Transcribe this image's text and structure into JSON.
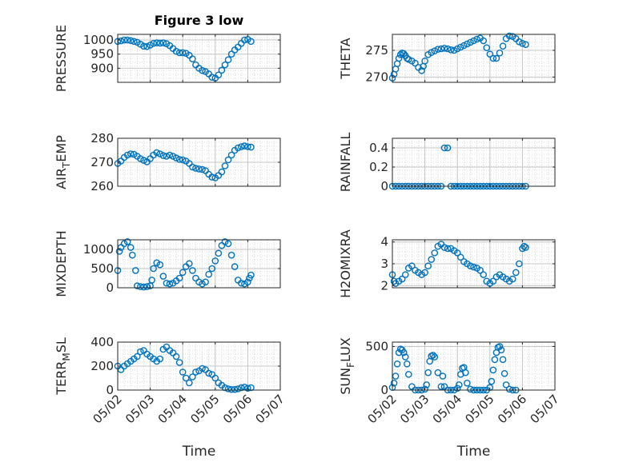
{
  "figure": {
    "title": "Figure 3 low",
    "xlabel": "Time",
    "xticks": [
      "05/02",
      "05/03",
      "05/04",
      "05/05",
      "05/06",
      "05/07"
    ],
    "marker_color": "#0072BD"
  },
  "chart_data": [
    {
      "type": "scatter",
      "id": "pressure",
      "title": "Figure 3 low",
      "ylabel": "PRESSURE",
      "ylim": [
        850,
        1020
      ],
      "yticks": [
        900,
        950,
        1000
      ],
      "grid": true,
      "x": [
        0.0,
        0.1,
        0.2,
        0.3,
        0.4,
        0.5,
        0.6,
        0.7,
        0.8,
        0.9,
        1.0,
        1.1,
        1.2,
        1.3,
        1.4,
        1.5,
        1.6,
        1.7,
        1.8,
        1.9,
        2.0,
        2.1,
        2.2,
        2.3,
        2.4,
        2.5,
        2.6,
        2.7,
        2.8,
        2.9,
        3.0,
        3.1,
        3.2,
        3.3,
        3.4,
        3.5,
        3.6,
        3.7,
        3.8,
        3.9,
        4.0,
        4.1
      ],
      "y": [
        995,
        997,
        1000,
        1000,
        998,
        995,
        992,
        985,
        978,
        977,
        982,
        988,
        990,
        989,
        990,
        987,
        980,
        970,
        960,
        955,
        955,
        953,
        946,
        933,
        912,
        900,
        892,
        888,
        880,
        868,
        865,
        876,
        893,
        912,
        930,
        950,
        965,
        975,
        988,
        1000,
        1002,
        995
      ]
    },
    {
      "type": "scatter",
      "id": "theta",
      "ylabel": "THETA",
      "ylim": [
        269,
        278
      ],
      "yticks": [
        270,
        275
      ],
      "grid": true,
      "x": [
        0.0,
        0.05,
        0.1,
        0.15,
        0.2,
        0.25,
        0.3,
        0.35,
        0.4,
        0.45,
        0.5,
        0.6,
        0.7,
        0.8,
        0.9,
        0.95,
        1.0,
        1.1,
        1.2,
        1.3,
        1.4,
        1.5,
        1.6,
        1.7,
        1.8,
        1.9,
        2.0,
        2.1,
        2.2,
        2.3,
        2.4,
        2.5,
        2.6,
        2.7,
        2.8,
        2.9,
        3.0,
        3.1,
        3.2,
        3.3,
        3.4,
        3.5,
        3.6,
        3.7,
        3.8,
        3.9,
        4.0,
        4.1
      ],
      "y": [
        269.8,
        270.5,
        271.5,
        272.5,
        273.5,
        274.2,
        274.5,
        274.4,
        274.0,
        273.5,
        273.3,
        273.0,
        272.6,
        271.8,
        271.2,
        272.0,
        273.0,
        274.2,
        274.6,
        274.9,
        275.2,
        275.3,
        275.4,
        275.3,
        275.1,
        275.0,
        275.3,
        275.6,
        275.9,
        276.2,
        276.5,
        276.8,
        277.1,
        277.3,
        276.8,
        275.5,
        274.3,
        273.5,
        273.5,
        274.5,
        275.8,
        277.2,
        277.7,
        277.6,
        277.2,
        276.6,
        276.3,
        276.1
      ]
    },
    {
      "type": "scatter",
      "id": "air_temp",
      "ylabel": "AIR_TEMP",
      "ylim": [
        260,
        280
      ],
      "yticks": [
        260,
        270,
        280
      ],
      "grid": true,
      "x": [
        0.0,
        0.1,
        0.2,
        0.3,
        0.4,
        0.5,
        0.6,
        0.7,
        0.8,
        0.9,
        1.0,
        1.1,
        1.2,
        1.3,
        1.4,
        1.5,
        1.6,
        1.7,
        1.8,
        1.9,
        2.0,
        2.1,
        2.2,
        2.3,
        2.4,
        2.5,
        2.6,
        2.7,
        2.8,
        2.9,
        3.0,
        3.1,
        3.2,
        3.3,
        3.4,
        3.5,
        3.6,
        3.7,
        3.8,
        3.9,
        4.0,
        4.1
      ],
      "y": [
        269.5,
        270.5,
        272.0,
        273.0,
        273.5,
        273.3,
        272.5,
        271.5,
        270.8,
        270.2,
        271.5,
        273.0,
        274.0,
        273.5,
        272.8,
        272.5,
        273.0,
        272.5,
        271.8,
        271.2,
        271.0,
        270.5,
        269.5,
        268.0,
        267.5,
        267.2,
        267.0,
        266.5,
        265.0,
        263.8,
        263.5,
        264.5,
        266.0,
        268.5,
        271.0,
        273.0,
        275.0,
        276.0,
        276.5,
        276.8,
        276.5,
        276.3
      ]
    },
    {
      "type": "scatter",
      "id": "rainfall",
      "ylabel": "RAINFALL",
      "ylim": [
        0,
        0.5
      ],
      "yticks": [
        0,
        0.2,
        0.4
      ],
      "grid": true,
      "x": [
        0.0,
        0.1,
        0.2,
        0.3,
        0.4,
        0.5,
        0.6,
        0.7,
        0.8,
        0.9,
        1.0,
        1.1,
        1.2,
        1.3,
        1.4,
        1.5,
        1.6,
        1.7,
        1.8,
        1.9,
        2.0,
        2.1,
        2.2,
        2.3,
        2.4,
        2.5,
        2.6,
        2.7,
        2.8,
        2.9,
        3.0,
        3.1,
        3.2,
        3.3,
        3.4,
        3.5,
        3.6,
        3.7,
        3.8,
        3.9,
        4.0,
        4.1
      ],
      "y": [
        0,
        0,
        0,
        0,
        0,
        0,
        0,
        0,
        0,
        0,
        0,
        0,
        0,
        0,
        0,
        0,
        0.4,
        0.4,
        0,
        0,
        0,
        0,
        0,
        0,
        0,
        0,
        0,
        0,
        0,
        0,
        0,
        0,
        0,
        0,
        0,
        0,
        0,
        0,
        0,
        0,
        0,
        0
      ]
    },
    {
      "type": "scatter",
      "id": "mixdepth",
      "ylabel": "MIXDEPTH",
      "ylim": [
        0,
        1250
      ],
      "yticks": [
        0,
        500,
        1000
      ],
      "grid": true,
      "x": [
        0.0,
        0.05,
        0.1,
        0.2,
        0.3,
        0.4,
        0.45,
        0.55,
        0.6,
        0.7,
        0.8,
        0.9,
        1.0,
        1.05,
        1.1,
        1.2,
        1.3,
        1.4,
        1.5,
        1.6,
        1.7,
        1.8,
        1.9,
        2.0,
        2.1,
        2.2,
        2.3,
        2.4,
        2.5,
        2.6,
        2.7,
        2.8,
        2.9,
        3.0,
        3.1,
        3.2,
        3.3,
        3.4,
        3.5,
        3.6,
        3.7,
        3.8,
        3.9,
        4.0,
        4.05,
        4.1
      ],
      "y": [
        450,
        950,
        1050,
        1150,
        1200,
        1050,
        850,
        450,
        50,
        30,
        20,
        30,
        50,
        200,
        500,
        650,
        600,
        300,
        120,
        100,
        120,
        180,
        250,
        400,
        550,
        630,
        450,
        250,
        150,
        100,
        150,
        350,
        500,
        700,
        900,
        1100,
        1200,
        1150,
        850,
        550,
        200,
        120,
        100,
        150,
        250,
        330
      ]
    },
    {
      "type": "scatter",
      "id": "h2omixra",
      "ylabel": "H2OMIXRA",
      "ylim": [
        1.9,
        4.1
      ],
      "yticks": [
        2,
        3,
        4
      ],
      "grid": true,
      "x": [
        0.0,
        0.05,
        0.1,
        0.2,
        0.3,
        0.4,
        0.5,
        0.6,
        0.7,
        0.8,
        0.9,
        1.0,
        1.1,
        1.2,
        1.3,
        1.4,
        1.5,
        1.6,
        1.7,
        1.8,
        1.9,
        2.0,
        2.1,
        2.2,
        2.3,
        2.4,
        2.5,
        2.6,
        2.7,
        2.8,
        2.9,
        3.0,
        3.1,
        3.2,
        3.3,
        3.4,
        3.5,
        3.6,
        3.7,
        3.8,
        3.9,
        4.0,
        4.05,
        4.1
      ],
      "y": [
        2.5,
        2.2,
        2.1,
        2.2,
        2.3,
        2.5,
        2.8,
        2.9,
        2.7,
        2.6,
        2.5,
        2.6,
        2.9,
        3.2,
        3.5,
        3.8,
        3.9,
        3.75,
        3.7,
        3.7,
        3.6,
        3.5,
        3.3,
        3.1,
        3.0,
        2.9,
        2.85,
        2.8,
        2.7,
        2.5,
        2.2,
        2.1,
        2.2,
        2.4,
        2.5,
        2.4,
        2.3,
        2.2,
        2.3,
        2.6,
        3.0,
        3.7,
        3.8,
        3.75
      ]
    },
    {
      "type": "scatter",
      "id": "terr_msl",
      "ylabel": "TERR_MSL",
      "ylim": [
        0,
        400
      ],
      "yticks": [
        0,
        200,
        400
      ],
      "grid": true,
      "x": [
        0.0,
        0.1,
        0.2,
        0.3,
        0.4,
        0.5,
        0.6,
        0.7,
        0.8,
        0.9,
        1.0,
        1.1,
        1.2,
        1.3,
        1.4,
        1.5,
        1.6,
        1.7,
        1.8,
        1.9,
        2.0,
        2.1,
        2.2,
        2.3,
        2.4,
        2.5,
        2.6,
        2.7,
        2.8,
        2.9,
        3.0,
        3.1,
        3.2,
        3.3,
        3.4,
        3.5,
        3.6,
        3.7,
        3.8,
        3.9,
        4.0,
        4.1
      ],
      "y": [
        200,
        170,
        200,
        220,
        240,
        260,
        280,
        320,
        330,
        300,
        280,
        260,
        240,
        260,
        340,
        360,
        330,
        310,
        280,
        230,
        150,
        100,
        60,
        110,
        150,
        160,
        180,
        170,
        140,
        130,
        100,
        60,
        40,
        20,
        10,
        5,
        5,
        10,
        20,
        25,
        15,
        20
      ]
    },
    {
      "type": "scatter",
      "id": "sun_flux",
      "ylabel": "SUN_FLUX",
      "ylim": [
        0,
        550
      ],
      "yticks": [
        0,
        500
      ],
      "grid": true,
      "x": [
        0.0,
        0.05,
        0.1,
        0.15,
        0.2,
        0.25,
        0.3,
        0.35,
        0.4,
        0.45,
        0.5,
        0.6,
        0.7,
        0.8,
        0.9,
        1.0,
        1.05,
        1.1,
        1.15,
        1.2,
        1.25,
        1.3,
        1.4,
        1.5,
        1.55,
        1.6,
        1.7,
        1.8,
        1.9,
        2.0,
        2.05,
        2.1,
        2.15,
        2.2,
        2.25,
        2.3,
        2.4,
        2.5,
        2.6,
        2.7,
        2.8,
        2.9,
        3.0,
        3.05,
        3.1,
        3.15,
        3.2,
        3.25,
        3.3,
        3.35,
        3.4,
        3.45,
        3.5,
        3.6,
        3.7,
        3.8
      ],
      "y": [
        30,
        80,
        160,
        300,
        430,
        470,
        460,
        430,
        380,
        300,
        180,
        40,
        0,
        0,
        0,
        10,
        60,
        200,
        330,
        390,
        400,
        380,
        200,
        40,
        160,
        40,
        0,
        0,
        0,
        20,
        60,
        180,
        250,
        260,
        200,
        80,
        10,
        0,
        0,
        0,
        0,
        0,
        30,
        100,
        230,
        350,
        430,
        490,
        500,
        460,
        350,
        190,
        60,
        10,
        0,
        0
      ]
    }
  ]
}
